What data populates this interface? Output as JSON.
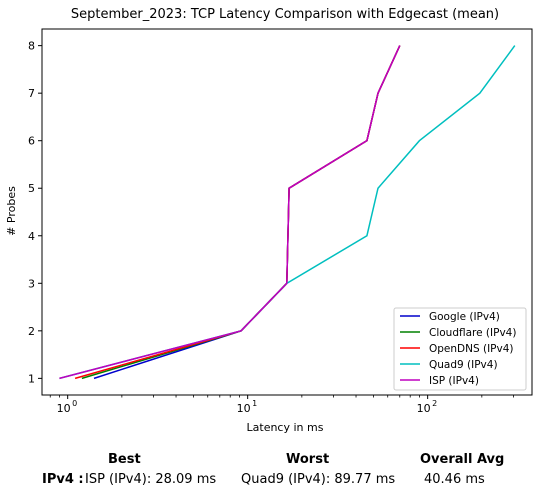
{
  "chart_data": {
    "type": "line",
    "title": "September_2023: TCP Latency Comparison with Edgecast (mean)",
    "xlabel": "Latency in ms",
    "ylabel": "# Probes",
    "x_scale": "log",
    "xlim": [
      0.72,
      380
    ],
    "ylim": [
      0.65,
      8.35
    ],
    "x_ticks": [
      {
        "value": 1,
        "base": "10",
        "exp": "0"
      },
      {
        "value": 10,
        "base": "10",
        "exp": "1"
      },
      {
        "value": 100,
        "base": "10",
        "exp": "2"
      }
    ],
    "y_ticks": [
      1,
      2,
      3,
      4,
      5,
      6,
      7,
      8
    ],
    "grid": false,
    "legend_position": "lower-right",
    "series": [
      {
        "name": "Google (IPv4)",
        "color": "#0000cc",
        "x": [
          1.4,
          9.2,
          16.5,
          17.0,
          46.0,
          53.0,
          70.0
        ],
        "y": [
          1,
          2,
          3,
          5,
          6,
          7,
          8
        ]
      },
      {
        "name": "Cloudflare (IPv4)",
        "color": "#008000",
        "x": [
          1.2,
          9.2,
          16.5,
          17.0,
          46.0,
          53.0,
          70.0
        ],
        "y": [
          1,
          2,
          3,
          5,
          6,
          7,
          8
        ]
      },
      {
        "name": "OpenDNS (IPv4)",
        "color": "#ff0000",
        "x": [
          1.1,
          9.2,
          16.5,
          17.0,
          46.0,
          53.0,
          70.0
        ],
        "y": [
          1,
          2,
          3,
          5,
          6,
          7,
          8
        ]
      },
      {
        "name": "Quad9 (IPv4)",
        "color": "#00bfbf",
        "x": [
          0.9,
          9.2,
          16.5,
          46.0,
          53.0,
          90.0,
          195.0,
          305.0
        ],
        "y": [
          1,
          2,
          3,
          4,
          5,
          6,
          7,
          8
        ]
      },
      {
        "name": "ISP (IPv4)",
        "color": "#bf00bf",
        "x": [
          0.9,
          9.2,
          16.5,
          17.0,
          46.0,
          53.0,
          70.0
        ],
        "y": [
          1,
          2,
          3,
          5,
          6,
          7,
          8
        ]
      }
    ]
  },
  "stats": {
    "best_header": "Best",
    "worst_header": "Worst",
    "avg_header": "Overall Avg",
    "row_label": "IPv4 :",
    "best_value": "ISP (IPv4): 28.09 ms",
    "worst_value": "Quad9 (IPv4): 89.77 ms",
    "avg_value": "40.46 ms"
  }
}
